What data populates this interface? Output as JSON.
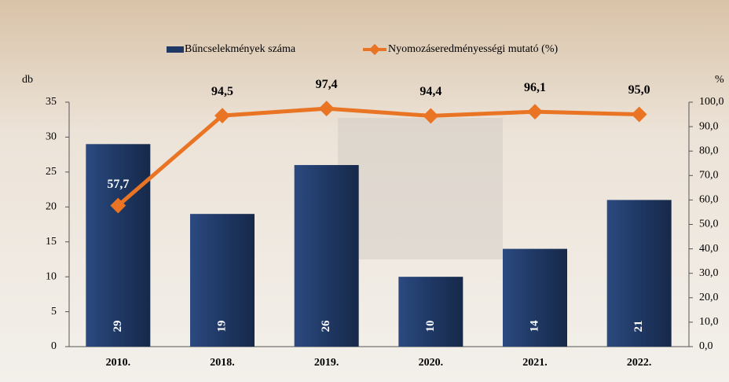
{
  "chart_data": {
    "type": "bar",
    "categories": [
      "2010.",
      "2018.",
      "2019.",
      "2020.",
      "2021.",
      "2022."
    ],
    "series": [
      {
        "name": "Bűncselekmények száma",
        "type": "bar",
        "color": "#1f3864",
        "values": [
          29,
          19,
          26,
          10,
          14,
          21
        ]
      },
      {
        "name": "Nyomozáseredményességi mutató (%)",
        "type": "line",
        "axis": "y2",
        "color": "#e97424",
        "values": [
          57.7,
          94.5,
          97.4,
          94.4,
          96.1,
          95.0
        ],
        "value_labels": [
          "57,7",
          "94,5",
          "97,4",
          "94,4",
          "96,1",
          "95,0"
        ]
      }
    ],
    "ylabel": "db",
    "y2label": "%",
    "ylim": [
      0,
      35
    ],
    "yticks": [
      0,
      5,
      10,
      15,
      20,
      25,
      30,
      35
    ],
    "y2lim": [
      0,
      100
    ],
    "y2ticks": [
      {
        "value": 0,
        "label": "0,0"
      },
      {
        "value": 10,
        "label": "10,0"
      },
      {
        "value": 20,
        "label": "20,0"
      },
      {
        "value": 30,
        "label": "30,0"
      },
      {
        "value": 40,
        "label": "40,0"
      },
      {
        "value": 50,
        "label": "50,0"
      },
      {
        "value": 60,
        "label": "60,0"
      },
      {
        "value": 70,
        "label": "70,0"
      },
      {
        "value": 80,
        "label": "80,0"
      },
      {
        "value": 90,
        "label": "90,0"
      },
      {
        "value": 100,
        "label": "100,0"
      }
    ],
    "legend": "top"
  }
}
